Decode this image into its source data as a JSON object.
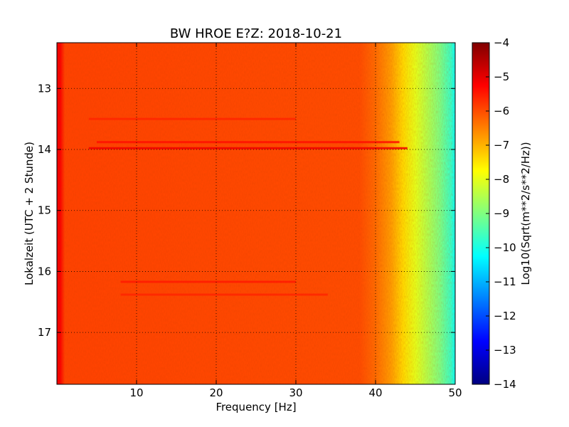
{
  "chart_data": {
    "type": "heatmap",
    "title": "BW HROE E?Z: 2018-10-21",
    "xlabel": "Frequency [Hz]",
    "ylabel": "Lokalzeit (UTC + 2 Stunde)",
    "colorbar_label": "Log10(Sqrt(m**2/s**2/Hz))",
    "xlim": [
      0,
      50
    ],
    "ylim": [
      12.25,
      17.85
    ],
    "y_inverted": true,
    "x_ticks": [
      10,
      20,
      30,
      40,
      50
    ],
    "x_tick_labels": [
      "10",
      "20",
      "30",
      "40",
      "50"
    ],
    "y_ticks": [
      13,
      14,
      15,
      16,
      17
    ],
    "y_tick_labels": [
      "13",
      "14",
      "15",
      "16",
      "17"
    ],
    "colorbar_range": [
      -14,
      -4
    ],
    "colorbar_ticks": [
      -4,
      -5,
      -6,
      -7,
      -8,
      -9,
      -10,
      -11,
      -12,
      -13,
      -14
    ],
    "colorbar_tick_labels": [
      "−4",
      "−5",
      "−6",
      "−7",
      "−8",
      "−9",
      "−10",
      "−11",
      "−12",
      "−13",
      "−14"
    ],
    "colormap": "jet",
    "grid": "dotted",
    "spectrum_profile": {
      "frequency_hz": [
        0,
        0.4,
        1.0,
        38,
        40,
        42,
        43.5,
        45,
        46.5,
        48,
        49.5,
        50
      ],
      "log_amplitude": [
        -5.1,
        -5.2,
        -5.9,
        -6.0,
        -6.3,
        -6.8,
        -7.4,
        -8.0,
        -8.5,
        -9.0,
        -9.7,
        -10.2
      ]
    },
    "bands": [
      {
        "time": 13.5,
        "freq_range": [
          4,
          30
        ],
        "log_amplitude": -5.6
      },
      {
        "time": 13.88,
        "freq_range": [
          5,
          43
        ],
        "log_amplitude": -5.4
      },
      {
        "time": 13.98,
        "freq_range": [
          4,
          44
        ],
        "log_amplitude": -5.1
      },
      {
        "time": 16.17,
        "freq_range": [
          8,
          30
        ],
        "log_amplitude": -5.5
      },
      {
        "time": 16.38,
        "freq_range": [
          8,
          34
        ],
        "log_amplitude": -5.6
      }
    ]
  }
}
